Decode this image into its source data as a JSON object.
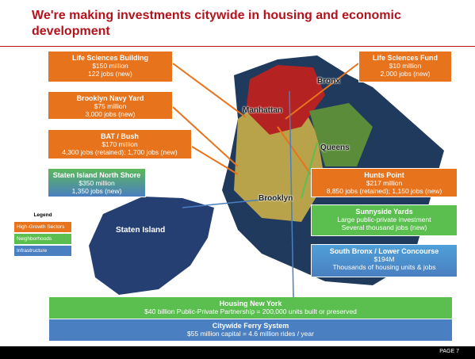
{
  "title": "We're making investments citywide in housing and economic development",
  "callouts": [
    {
      "title": "Life Sciences Building",
      "lines": [
        "$150 million",
        "122 jobs (new)"
      ]
    },
    {
      "title": "Life Sciences Fund",
      "lines": [
        "$10 million",
        "2,000 jobs (new)"
      ]
    },
    {
      "title": "Brooklyn Navy Yard",
      "lines": [
        "$75 million",
        "3,000 jobs (new)"
      ]
    },
    {
      "title": "BAT / Bush",
      "lines": [
        "$170 million",
        "4,300 jobs (retained); 1,700 jobs (new)"
      ]
    },
    {
      "title": "Staten Island North Shore",
      "lines": [
        "$350 million",
        "1,350 jobs (new)"
      ]
    },
    {
      "title": "Hunts Point",
      "lines": [
        "$217 million",
        "8,850 jobs (retained); 1,150 jobs (new)"
      ]
    },
    {
      "title": "Sunnyside Yards",
      "lines": [
        "Large public-private investment",
        "Several thousand jobs (new)"
      ]
    },
    {
      "title": "South Bronx / Lower Concourse",
      "lines": [
        "$194M",
        "Thousands of housing units & jobs"
      ]
    }
  ],
  "legend": {
    "title": "Legend",
    "items": [
      "High-Growth Sectors",
      "Neighborhoods",
      "Infrastructure"
    ]
  },
  "map_labels": [
    "Bronx",
    "Manhattan",
    "Queens",
    "Brooklyn",
    "Staten Island"
  ],
  "bars": [
    {
      "title": "Housing New York",
      "text": "$40 billion Public-Private Partnership = 200,000 units built or preserved"
    },
    {
      "title": "Citywide Ferry System",
      "text": "$55 million capital = 4.6 million rides / year"
    }
  ],
  "footer": "PAGE 7"
}
